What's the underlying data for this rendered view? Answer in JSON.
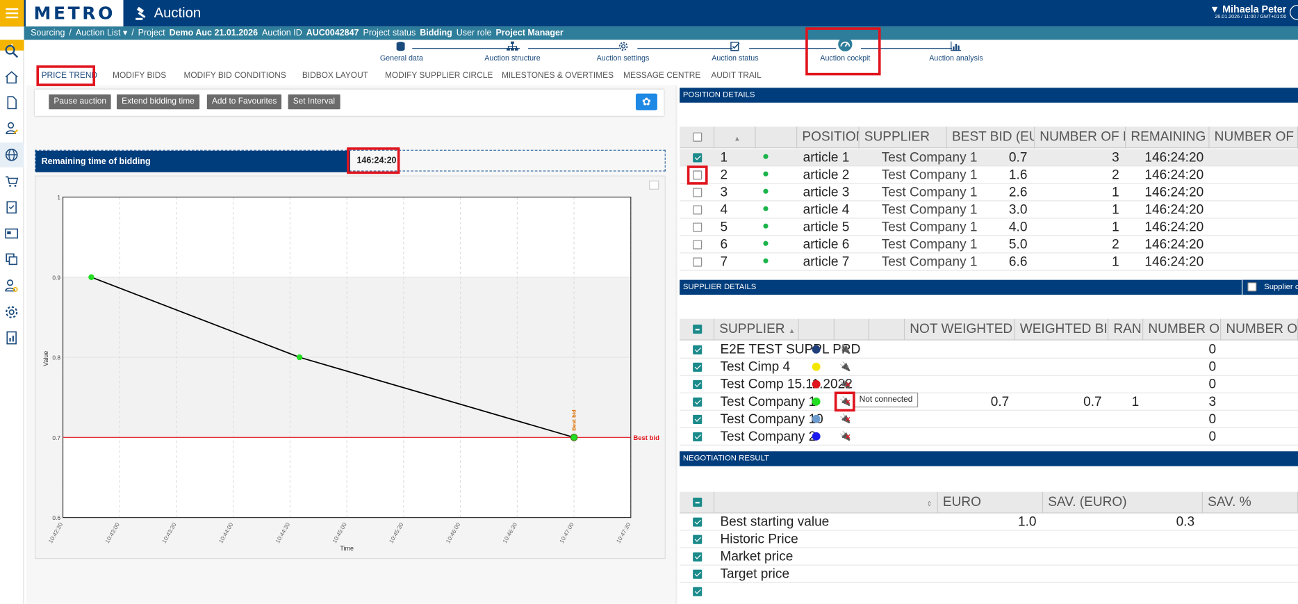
{
  "app": {
    "brand": "METRO",
    "title": "Auction",
    "user_name": "Mihaela Peter",
    "datetime": "26.01.2026 / 11:00 / GMT+01:00"
  },
  "breadcrumb": {
    "sourcing": "Sourcing",
    "sep1": "/",
    "auction_list": "Auction List ▾",
    "sep2": "/",
    "project_label": "Project",
    "project_value": "Demo Auc 21.01.2026",
    "auction_label": "Auction ID",
    "auction_value": "AUC0042847",
    "status_label": "Project status",
    "status_value": "Bidding",
    "role_label": "User role",
    "role_value": "Project Manager"
  },
  "sidebar": {
    "icons": [
      "search-icon",
      "home-icon",
      "document-icon",
      "user-edit-icon",
      "globe-icon",
      "cart-icon",
      "clipboard-icon",
      "card-icon",
      "copy-icon",
      "users-gear-icon",
      "gear-icon",
      "report-icon"
    ]
  },
  "steps": [
    {
      "label": "General data",
      "icon": "database-icon"
    },
    {
      "label": "Auction structure",
      "icon": "hierarchy-icon"
    },
    {
      "label": "Auction settings",
      "icon": "gear-icon"
    },
    {
      "label": "Auction status",
      "icon": "checklist-icon"
    },
    {
      "label": "Auction cockpit",
      "icon": "speedometer-icon"
    },
    {
      "label": "Auction analysis",
      "icon": "bar-chart-icon"
    }
  ],
  "tabs": [
    "PRICE TREND",
    "MODIFY BIDS",
    "MODIFY BID CONDITIONS",
    "BIDBOX LAYOUT",
    "MODIFY SUPPLIER CIRCLE",
    "MILESTONES & OVERTIMES",
    "MESSAGE CENTRE",
    "AUDIT TRAIL"
  ],
  "toolbar": {
    "pause": "Pause auction",
    "extend": "Extend bidding time",
    "favourites": "Add to Favourites",
    "interval": "Set Interval"
  },
  "remaining": {
    "label": "Remaining time of bidding",
    "value": "146:24:20"
  },
  "chart_data": {
    "type": "line",
    "x": [
      "10:42:45",
      "10:44:35",
      "10:47:00"
    ],
    "values": [
      0.9,
      0.8,
      0.7
    ],
    "xticks": [
      "10:42:30",
      "10:43:00",
      "10:43:30",
      "10:44:00",
      "10:44:30",
      "10:45:00",
      "10:45:30",
      "10:46:00",
      "10:46:30",
      "10:47:00",
      "10:47:30"
    ],
    "yticks": [
      "1",
      "0.9",
      "0.8",
      "0.7",
      "0.6"
    ],
    "ylim": [
      0.6,
      1
    ],
    "xlabel": "Time",
    "ylabel": "Value",
    "reference_line": {
      "value": 0.7,
      "label": "Best bid",
      "color": "#e0141d"
    },
    "point_label": "Best bid",
    "point_color": "#22dd22",
    "line_color": "#000000"
  },
  "position_details": {
    "title": "POSITION DETAILS",
    "headers": [
      "POSITION",
      "SUPPLIER",
      "BEST BID (EURO)",
      "NUMBER OF BIDS",
      "REMAINING TIME",
      "NUMBER OF OVERTIMES"
    ],
    "rows": [
      {
        "no": "1",
        "position": "article 1",
        "supplier": "Test Company 1",
        "best_bid": "0.7",
        "bids": "3",
        "time": "146:24:20",
        "checked": true
      },
      {
        "no": "2",
        "position": "article 2",
        "supplier": "Test Company 1",
        "best_bid": "1.6",
        "bids": "2",
        "time": "146:24:20",
        "checked": false
      },
      {
        "no": "3",
        "position": "article 3",
        "supplier": "Test Company 1",
        "best_bid": "2.6",
        "bids": "1",
        "time": "146:24:20",
        "checked": false
      },
      {
        "no": "4",
        "position": "article 4",
        "supplier": "Test Company 1",
        "best_bid": "3.0",
        "bids": "1",
        "time": "146:24:20",
        "checked": false
      },
      {
        "no": "5",
        "position": "article 5",
        "supplier": "Test Company 1",
        "best_bid": "4.0",
        "bids": "1",
        "time": "146:24:20",
        "checked": false
      },
      {
        "no": "6",
        "position": "article 6",
        "supplier": "Test Company 1",
        "best_bid": "5.0",
        "bids": "2",
        "time": "146:24:20",
        "checked": false
      },
      {
        "no": "7",
        "position": "article 7",
        "supplier": "Test Company 1",
        "best_bid": "6.6",
        "bids": "1",
        "time": "146:24:20",
        "checked": false
      }
    ]
  },
  "supplier_details": {
    "title": "SUPPLIER DETAILS",
    "toggle_label": "Supplier cur",
    "headers": [
      "SUPPLIER",
      "NOT WEIGHTED BID (EURO)",
      "WEIGHTED BID (EURO)",
      "RANK",
      "NUMBER OF BIDS",
      "NUMBER OF OVERTIM"
    ],
    "rows": [
      {
        "name": "E2E TEST SUPPL PRD",
        "color": "#1e3f7a",
        "conn": false,
        "nw": "",
        "w": "",
        "rank": "",
        "bids": "0"
      },
      {
        "name": "Test Cimp 4",
        "color": "#f3e600",
        "conn": false,
        "nw": "",
        "w": "",
        "rank": "",
        "bids": "0"
      },
      {
        "name": "Test Comp 15.11.2022",
        "color": "#e0141d",
        "conn": true,
        "nw": "",
        "w": "",
        "rank": "",
        "bids": "0"
      },
      {
        "name": "Test Company 1",
        "color": "#22dd22",
        "conn": true,
        "nw": "0.7",
        "w": "0.7",
        "rank": "1",
        "bids": "3"
      },
      {
        "name": "Test Company 10",
        "color": "#6c9ccf",
        "conn": true,
        "nw": "",
        "w": "",
        "rank": "",
        "bids": "0"
      },
      {
        "name": "Test Company 2",
        "color": "#1a1aee",
        "conn": true,
        "nw": "",
        "w": "",
        "rank": "",
        "bids": "0"
      }
    ],
    "tooltip": "Not connected"
  },
  "negotiation": {
    "title": "NEGOTIATION RESULT",
    "headers": [
      "EURO",
      "SAV. (EURO)",
      "SAV. %"
    ],
    "rows": [
      {
        "label": "Best starting value",
        "euro": "1.0",
        "sav": "0.3"
      },
      {
        "label": "Historic Price",
        "euro": "",
        "sav": ""
      },
      {
        "label": "Market price",
        "euro": "",
        "sav": ""
      },
      {
        "label": "Target price",
        "euro": "",
        "sav": ""
      }
    ]
  }
}
